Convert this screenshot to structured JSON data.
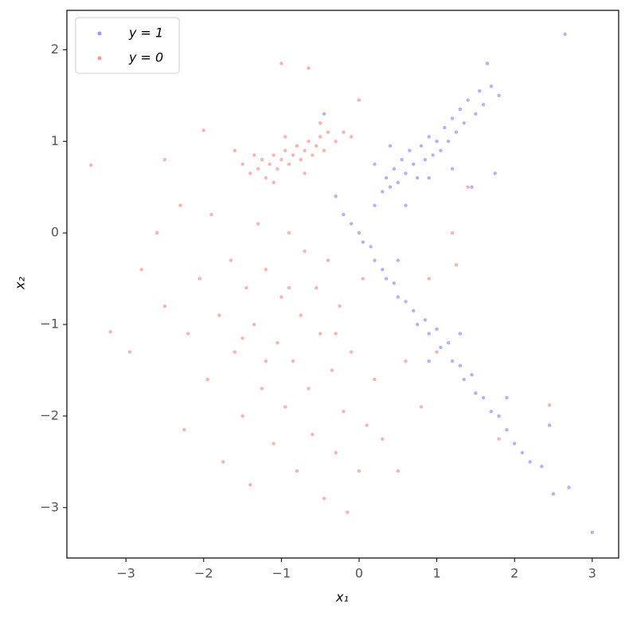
{
  "chart_data": {
    "type": "scatter",
    "xlabel": "x₁",
    "ylabel": "x₂",
    "xlim": [
      -3.76,
      3.34
    ],
    "ylim": [
      -3.55,
      2.43
    ],
    "xticks": [
      {
        "value": -3,
        "label": "−3"
      },
      {
        "value": -2,
        "label": "−2"
      },
      {
        "value": -1,
        "label": "−1"
      },
      0,
      1,
      2,
      3
    ],
    "yticks": [
      {
        "value": -3,
        "label": "−3"
      },
      {
        "value": -2,
        "label": "−2"
      },
      {
        "value": -1,
        "label": "−1"
      },
      0,
      1,
      2
    ],
    "legend": "upper-left",
    "series": [
      {
        "name": "y = 1",
        "color": "#0000ff",
        "x": [
          0.2,
          0.3,
          0.35,
          0.4,
          0.45,
          0.5,
          0.55,
          0.6,
          0.65,
          0.7,
          0.75,
          0.8,
          0.85,
          0.9,
          0.95,
          1.0,
          1.05,
          1.1,
          1.15,
          1.2,
          1.25,
          1.3,
          1.35,
          1.4,
          1.5,
          1.55,
          1.6,
          1.7,
          1.8,
          1.65,
          0.4,
          0.2,
          0.9,
          1.2,
          0.6,
          1.45,
          2.65,
          1.75,
          -0.45,
          -0.3,
          -0.2,
          -0.1,
          0.0,
          0.05,
          0.15,
          0.2,
          0.3,
          0.35,
          0.45,
          0.5,
          0.6,
          0.7,
          0.75,
          0.85,
          0.9,
          1.0,
          1.05,
          1.15,
          1.2,
          1.3,
          1.35,
          1.45,
          1.5,
          1.6,
          1.7,
          1.8,
          1.9,
          2.0,
          2.1,
          2.2,
          2.35,
          2.5,
          2.7,
          3.0,
          0.9,
          0.5,
          1.3,
          1.9,
          2.45
        ],
        "values": [
          0.3,
          0.45,
          0.6,
          0.5,
          0.7,
          0.55,
          0.8,
          0.65,
          0.9,
          0.75,
          0.6,
          0.95,
          0.8,
          1.05,
          0.85,
          1.0,
          0.9,
          1.15,
          1.0,
          1.25,
          1.1,
          1.35,
          1.2,
          1.45,
          1.3,
          1.55,
          1.4,
          1.6,
          1.5,
          1.85,
          0.95,
          0.75,
          0.6,
          0.7,
          0.3,
          0.5,
          2.17,
          0.65,
          1.3,
          0.4,
          0.2,
          0.1,
          0.0,
          -0.1,
          -0.15,
          -0.3,
          -0.4,
          -0.5,
          -0.55,
          -0.7,
          -0.75,
          -0.85,
          -1.0,
          -0.95,
          -1.1,
          -1.05,
          -1.25,
          -1.2,
          -1.4,
          -1.45,
          -1.6,
          -1.55,
          -1.75,
          -1.8,
          -1.95,
          -2.0,
          -2.15,
          -2.3,
          -2.4,
          -2.5,
          -2.55,
          -2.85,
          -2.78,
          -3.27,
          -1.4,
          -0.3,
          -1.1,
          -1.8,
          -2.1
        ]
      },
      {
        "name": "y = 0",
        "color": "#ff0000",
        "x": [
          -1.4,
          -1.3,
          -1.25,
          -1.2,
          -1.15,
          -1.1,
          -1.05,
          -1.0,
          -0.95,
          -0.9,
          -0.85,
          -0.8,
          -0.75,
          -0.7,
          -0.65,
          -0.6,
          -0.55,
          -0.5,
          -0.45,
          -0.4,
          -0.3,
          -0.2,
          -0.1,
          -1.35,
          -1.1,
          -0.95,
          -0.7,
          -0.5,
          0.0,
          -1.5,
          -1.6,
          -1.0,
          -0.65,
          -2.0,
          -2.5,
          -3.45,
          -3.2,
          -2.95,
          -2.8,
          -2.6,
          -2.5,
          -2.3,
          -2.25,
          -2.2,
          -2.05,
          -1.95,
          -1.9,
          -1.8,
          -1.75,
          -1.65,
          -1.6,
          -1.5,
          -1.45,
          -1.4,
          -1.35,
          -1.3,
          -1.25,
          -1.2,
          -1.1,
          -1.05,
          -1.0,
          -0.95,
          -0.9,
          -0.85,
          -0.8,
          -0.75,
          -0.7,
          -0.65,
          -0.6,
          -0.55,
          -0.5,
          -0.45,
          -0.4,
          -0.35,
          -0.3,
          -0.25,
          -0.2,
          -0.15,
          -0.1,
          0.0,
          0.05,
          0.1,
          0.2,
          0.3,
          0.5,
          0.6,
          0.8,
          0.9,
          1.0,
          1.2,
          1.25,
          1.4,
          1.8,
          2.45,
          -1.2,
          -0.9,
          -1.5,
          -0.3
        ],
        "values": [
          0.65,
          0.7,
          0.8,
          0.6,
          0.75,
          0.85,
          0.7,
          0.8,
          0.9,
          0.75,
          0.85,
          0.95,
          0.8,
          0.9,
          1.0,
          0.85,
          0.95,
          1.05,
          0.9,
          1.1,
          1.0,
          1.1,
          1.05,
          0.85,
          0.55,
          1.05,
          0.65,
          1.2,
          1.45,
          0.75,
          0.9,
          1.85,
          1.8,
          1.12,
          0.8,
          0.74,
          -1.08,
          -1.3,
          -0.4,
          0.0,
          -0.8,
          0.3,
          -2.15,
          -1.1,
          -0.5,
          -1.6,
          0.2,
          -0.9,
          -2.5,
          -0.3,
          -1.3,
          -2.0,
          -0.6,
          -2.75,
          -1.0,
          0.1,
          -1.7,
          -0.4,
          -2.3,
          -1.2,
          -0.7,
          -1.9,
          0.0,
          -1.4,
          -2.6,
          -0.9,
          -0.2,
          -1.7,
          -2.2,
          -0.6,
          -1.1,
          -2.9,
          -0.3,
          -1.5,
          -2.4,
          -0.8,
          -1.95,
          -3.05,
          -1.3,
          -2.6,
          -0.5,
          -2.1,
          -1.6,
          -2.25,
          -2.6,
          -1.4,
          -1.9,
          -0.5,
          -1.3,
          0.0,
          -0.35,
          0.5,
          -2.25,
          -1.88,
          -1.4,
          -0.6,
          -1.15,
          -1.1
        ]
      }
    ]
  }
}
